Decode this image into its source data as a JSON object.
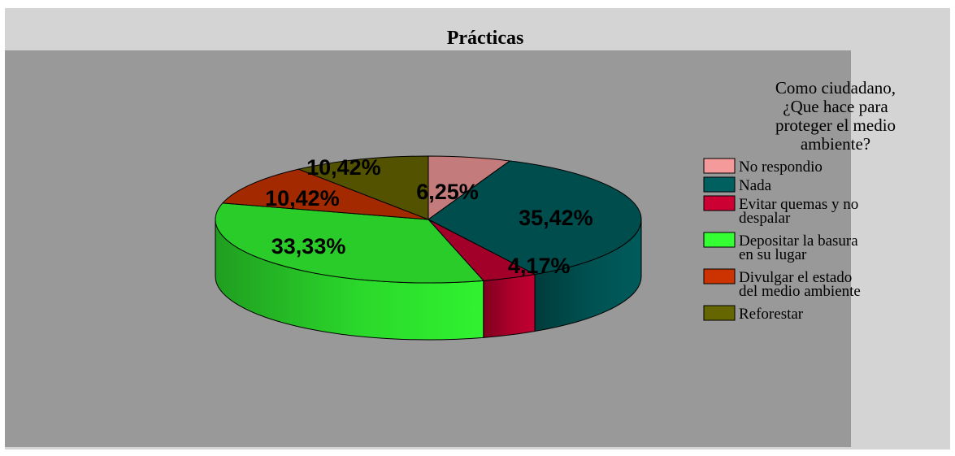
{
  "chart_data": {
    "type": "pie",
    "title": "Prácticas",
    "legend_title": "Como ciudadano, ¿Que hace para proteger el medio ambiente?",
    "legend_title_lines": [
      "Como ciudadano,",
      "¿Que hace para",
      "proteger el medio",
      "ambiente?"
    ],
    "legend_position": "right",
    "three_d": true,
    "slices": [
      {
        "label": "No respondio",
        "label_lines": [
          "No respondio"
        ],
        "value": 6.25,
        "data_label": "6,25%",
        "color": "#f49a9a"
      },
      {
        "label": "Nada",
        "label_lines": [
          "Nada"
        ],
        "value": 35.42,
        "data_label": "35,42%",
        "color": "#006060"
      },
      {
        "label": "Evitar quemas y no despalar",
        "label_lines": [
          "Evitar quemas y no",
          "despalar"
        ],
        "value": 4.17,
        "data_label": "4,17%",
        "color": "#cc0033"
      },
      {
        "label": "Depositar la basura en su lugar",
        "label_lines": [
          "Depositar la basura",
          "en su lugar"
        ],
        "value": 33.33,
        "data_label": "33,33%",
        "color": "#33ff33"
      },
      {
        "label": "Divulgar el estado del medio ambiente",
        "label_lines": [
          "Divulgar el estado",
          "del medio ambiente"
        ],
        "value": 10.42,
        "data_label": "10,42%",
        "color": "#cc3300"
      },
      {
        "label": "Reforestar",
        "label_lines": [
          "Reforestar"
        ],
        "value": 10.42,
        "data_label": "10,42%",
        "color": "#666600"
      }
    ]
  },
  "colors": {
    "outer_background": "#d4d4d4",
    "plot_background": "#999999",
    "text": "#000000"
  }
}
